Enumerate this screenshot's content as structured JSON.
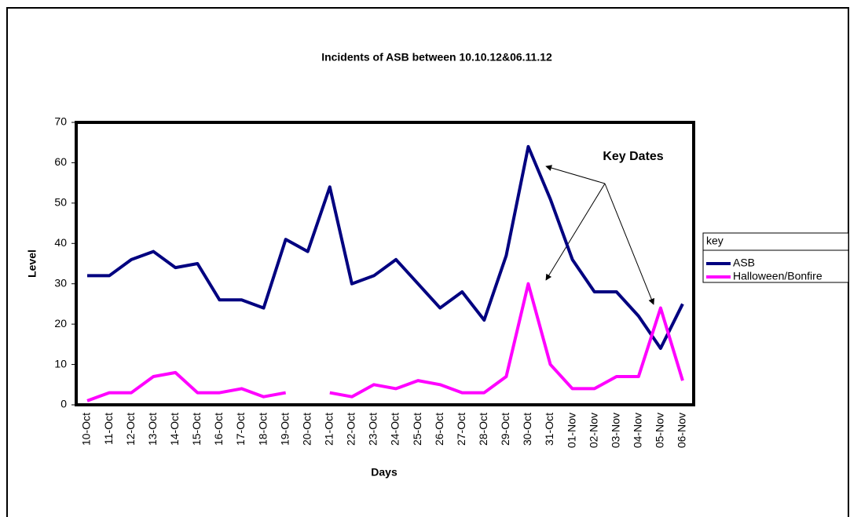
{
  "chart_data": {
    "type": "line",
    "title": "Incidents of ASB between 10.10.12&06.11.12",
    "x_label": "Days",
    "y_label": "Level",
    "annotation": "Key Dates",
    "legend_title": "key",
    "legend": "right",
    "grid": false,
    "categories": [
      "10-Oct",
      "11-Oct",
      "12-Oct",
      "13-Oct",
      "14-Oct",
      "15-Oct",
      "16-Oct",
      "17-Oct",
      "18-Oct",
      "19-Oct",
      "20-Oct",
      "21-Oct",
      "22-Oct",
      "23-Oct",
      "24-Oct",
      "25-Oct",
      "26-Oct",
      "27-Oct",
      "28-Oct",
      "29-Oct",
      "30-Oct",
      "31-Oct",
      "01-Nov",
      "02-Nov",
      "03-Nov",
      "04-Nov",
      "05-Nov",
      "06-Nov"
    ],
    "series": [
      {
        "name": "ASB",
        "color": "#000080",
        "values": [
          32,
          32,
          36,
          38,
          34,
          35,
          26,
          26,
          24,
          41,
          38,
          54,
          30,
          32,
          36,
          30,
          24,
          28,
          21,
          37,
          64,
          51,
          36,
          28,
          28,
          22,
          14,
          25
        ]
      },
      {
        "name": "Halloween/Bonfire",
        "color": "#ff00ff",
        "values": [
          1,
          3,
          3,
          7,
          8,
          3,
          3,
          4,
          2,
          3,
          null,
          3,
          2,
          5,
          4,
          6,
          5,
          3,
          3,
          7,
          30,
          10,
          4,
          4,
          7,
          7,
          24,
          6
        ]
      }
    ],
    "ylim": [
      0,
      70
    ],
    "yticks": [
      0,
      10,
      20,
      30,
      40,
      50,
      60,
      70
    ]
  }
}
